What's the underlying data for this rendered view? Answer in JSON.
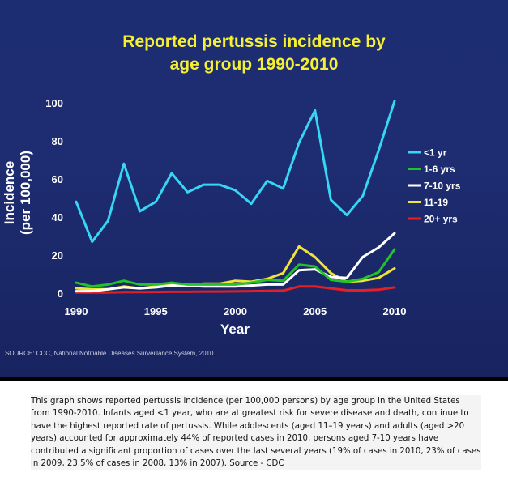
{
  "chart_data": {
    "type": "line",
    "title_lines": [
      "Reported pertussis incidence by",
      "age group 1990-2010"
    ],
    "xlabel": "Year",
    "ylabel_lines": [
      "Incidence",
      "(per 100,000)"
    ],
    "xlim": [
      1990,
      2010
    ],
    "ylim": [
      0,
      100
    ],
    "x_ticks": [
      1990,
      1995,
      2000,
      2005,
      2010
    ],
    "y_ticks": [
      0,
      20,
      40,
      60,
      80,
      100
    ],
    "grid": false,
    "legend_position": "right",
    "x": [
      1990,
      1991,
      1992,
      1993,
      1994,
      1995,
      1996,
      1997,
      1998,
      1999,
      2000,
      2001,
      2002,
      2003,
      2004,
      2005,
      2006,
      2007,
      2008,
      2009,
      2010
    ],
    "series": [
      {
        "name": "<1 yr",
        "color": "#36d6f5",
        "values": [
          48,
          27,
          38,
          68,
          43,
          48,
          63,
          53,
          57,
          57,
          54,
          47,
          59,
          55,
          79,
          96,
          49,
          41,
          51,
          75,
          101
        ]
      },
      {
        "name": "1-6 yrs",
        "color": "#22c22a",
        "values": [
          5.5,
          3.5,
          4.5,
          6.5,
          4.5,
          4.5,
          5.5,
          4.5,
          4.5,
          4.5,
          4.5,
          5.5,
          7,
          6.5,
          15,
          14,
          7,
          6,
          7.5,
          11,
          23
        ]
      },
      {
        "name": "7-10 yrs",
        "color": "#ffffff",
        "values": [
          1,
          1,
          2,
          3,
          2.5,
          3,
          4,
          4,
          3.5,
          3.5,
          3.5,
          4,
          4.5,
          4.5,
          12,
          12.5,
          8.5,
          8,
          19,
          24,
          31.5
        ]
      },
      {
        "name": "11-19",
        "color": "#f0e43a",
        "values": [
          2.5,
          2,
          2,
          3.5,
          2.5,
          3.5,
          5,
          4,
          5,
          5,
          6.5,
          6,
          7.5,
          10.5,
          24.5,
          19,
          10.5,
          6,
          6.5,
          8,
          13
        ]
      },
      {
        "name": "20+ yrs",
        "color": "#e41f25",
        "values": [
          0.3,
          0.3,
          0.3,
          0.5,
          0.5,
          0.6,
          0.7,
          0.7,
          0.8,
          0.8,
          0.9,
          1,
          1.2,
          1.3,
          3.5,
          3.5,
          2.5,
          1.5,
          1.5,
          1.8,
          3
        ]
      }
    ],
    "source": "SOURCE: CDC, National Notifiable Diseases Surveillance System, 2010"
  },
  "caption": "This graph shows reported pertussis incidence (per 100,000 persons) by age group in the United States from 1990-2010. Infants aged <1 year, who are at greatest risk for severe disease and death, continue to have the highest reported rate of pertussis. While adolescents (aged 11–19 years) and adults (aged >20 years) accounted for approximately 44% of reported cases in 2010, persons aged 7-10 years have contributed a significant proportion of cases over the last several years (19% of cases in 2010, 23% of cases in 2009, 23.5% of cases in 2008, 13% in 2007). Source - CDC"
}
